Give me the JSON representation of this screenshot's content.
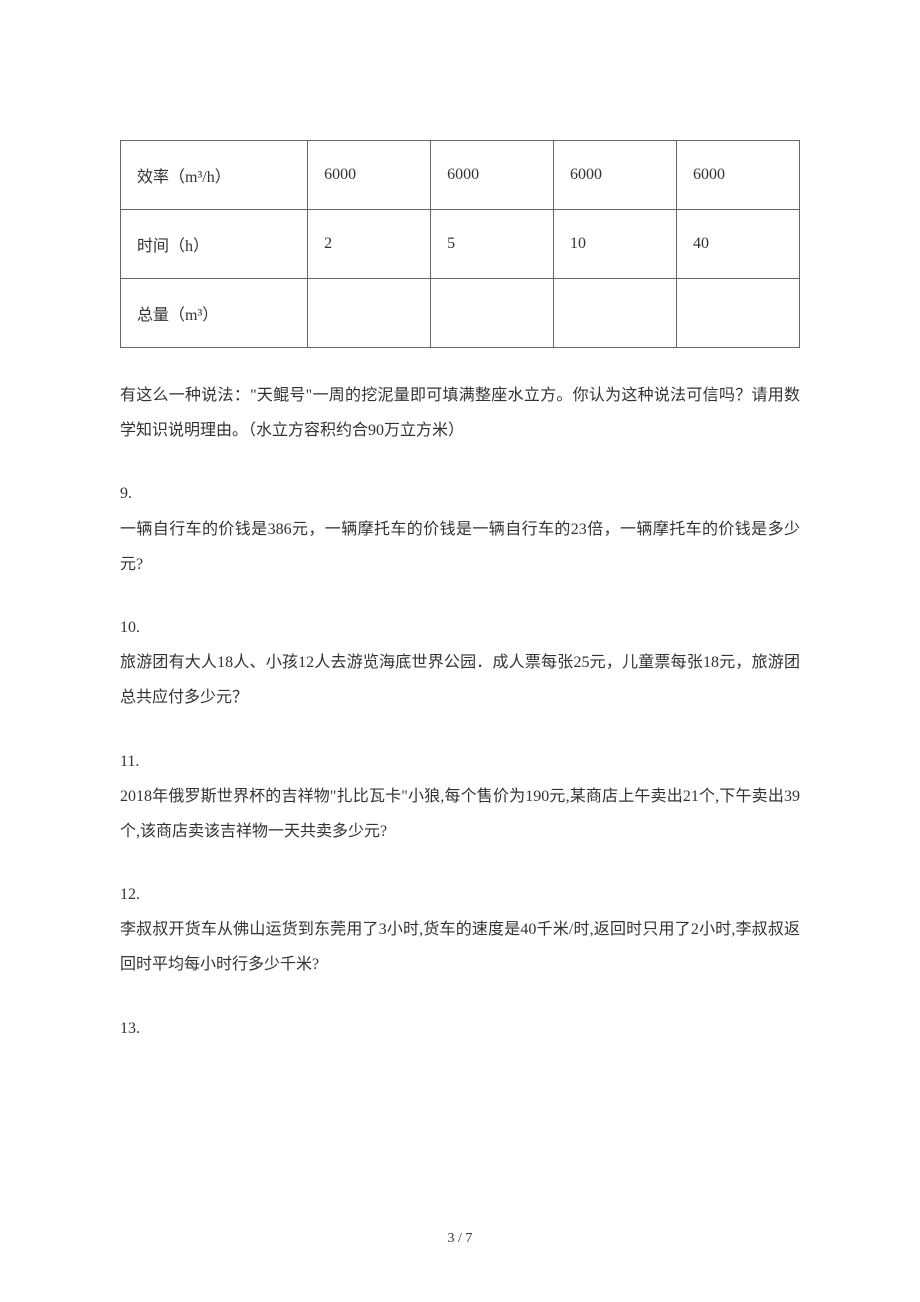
{
  "table": {
    "rows": [
      {
        "label": "效率（m³/h）",
        "cells": [
          "6000",
          "6000",
          "6000",
          "6000"
        ]
      },
      {
        "label": "时间（h）",
        "cells": [
          "2",
          "5",
          "10",
          "40"
        ]
      },
      {
        "label": "总量（m³）",
        "cells": [
          "",
          "",
          "",
          ""
        ]
      }
    ]
  },
  "paragraph_after_table": "有这么一种说法：\"天鲲号\"一周的挖泥量即可填满整座水立方。你认为这种说法可信吗？请用数学知识说明理由。（水立方容积约合90万立方米）",
  "questions": [
    {
      "number": "9.",
      "text": "一辆自行车的价钱是386元，一辆摩托车的价钱是一辆自行车的23倍，一辆摩托车的价钱是多少元?"
    },
    {
      "number": "10.",
      "text": "旅游团有大人18人、小孩12人去游览海底世界公园．成人票每张25元，儿童票每张18元，旅游团总共应付多少元？"
    },
    {
      "number": "11.",
      "text": "2018年俄罗斯世界杯的吉祥物\"扎比瓦卡\"小狼,每个售价为190元,某商店上午卖出21个,下午卖出39个,该商店卖该吉祥物一天共卖多少元?"
    },
    {
      "number": "12.",
      "text": "李叔叔开货车从佛山运货到东莞用了3小时,货车的速度是40千米/时,返回时只用了2小时,李叔叔返回时平均每小时行多少千米?"
    },
    {
      "number": "13.",
      "text": ""
    }
  ],
  "page_footer": "3 / 7"
}
